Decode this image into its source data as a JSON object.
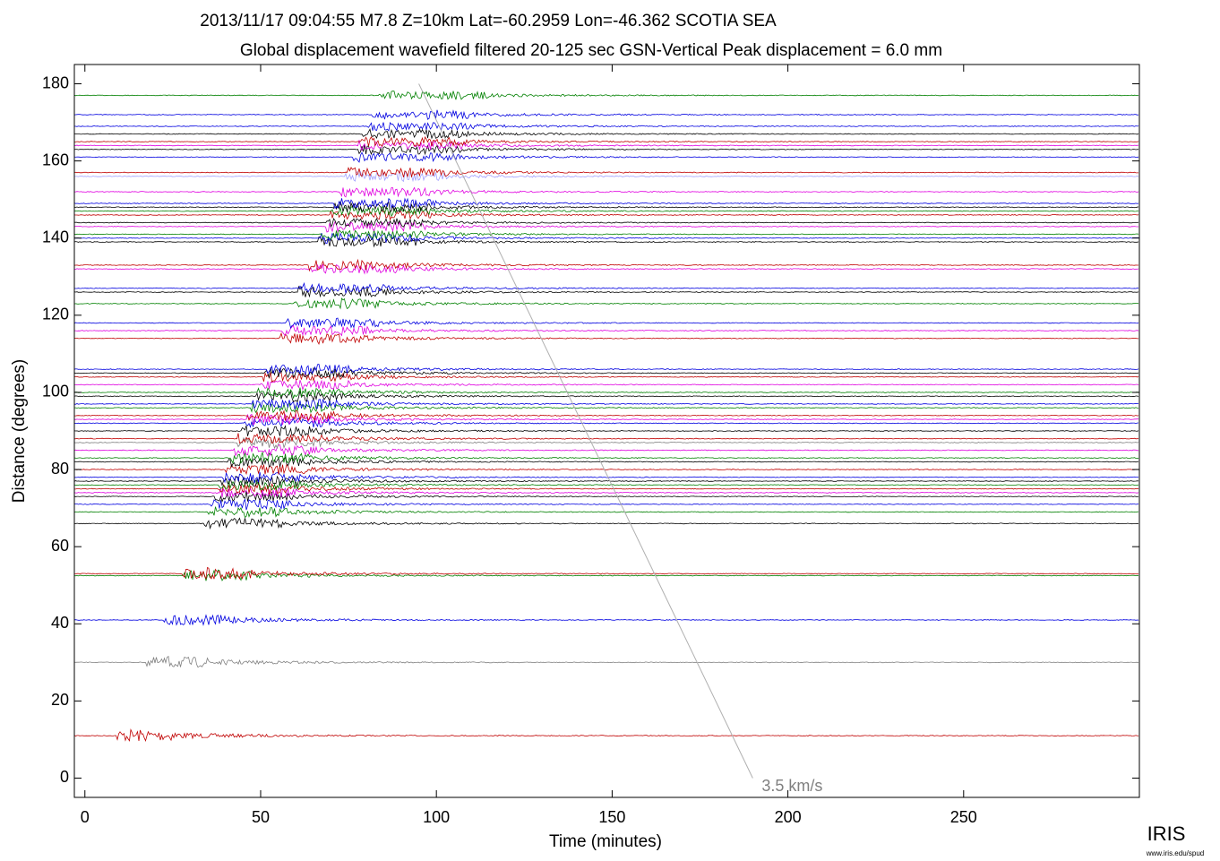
{
  "chart_data": {
    "type": "record-section",
    "title": "2013/11/17  09:04:55  M7.8  Z=10km  Lat=-60.2959 Lon=-46.362  SCOTIA SEA",
    "subtitle": "Global displacement wavefield     filtered 20-125 sec    GSN-Vertical    Peak displacement = 6.0 mm",
    "x_label": "Time (minutes)",
    "y_label": "Distance (degrees)",
    "xlim": [
      -3,
      300
    ],
    "ylim": [
      -5,
      185
    ],
    "xticks": [
      0,
      50,
      100,
      150,
      200,
      250
    ],
    "yticks": [
      0,
      20,
      40,
      60,
      80,
      100,
      120,
      140,
      160,
      180
    ],
    "reference_line": {
      "label": "3.5 km/s",
      "x": [
        95,
        190
      ],
      "y": [
        180,
        0
      ],
      "color": "#b0b0b0"
    },
    "traces": [
      {
        "distance": 11,
        "color": "#c00000"
      },
      {
        "distance": 30,
        "color": "#808080"
      },
      {
        "distance": 41,
        "color": "#0000e0"
      },
      {
        "distance": 52.5,
        "color": "#008000"
      },
      {
        "distance": 53,
        "color": "#c00000"
      },
      {
        "distance": 66,
        "color": "#000000"
      },
      {
        "distance": 69,
        "color": "#008000"
      },
      {
        "distance": 71,
        "color": "#0000e0"
      },
      {
        "distance": 73,
        "color": "#000000"
      },
      {
        "distance": 74,
        "color": "#e000e0"
      },
      {
        "distance": 75,
        "color": "#c00000"
      },
      {
        "distance": 76,
        "color": "#008000"
      },
      {
        "distance": 77,
        "color": "#000000"
      },
      {
        "distance": 78,
        "color": "#0000e0"
      },
      {
        "distance": 80,
        "color": "#c00000"
      },
      {
        "distance": 82,
        "color": "#000000"
      },
      {
        "distance": 83,
        "color": "#008000"
      },
      {
        "distance": 85,
        "color": "#e000e0"
      },
      {
        "distance": 87,
        "color": "#808080"
      },
      {
        "distance": 88,
        "color": "#c00000"
      },
      {
        "distance": 90,
        "color": "#000000"
      },
      {
        "distance": 92,
        "color": "#0000e0"
      },
      {
        "distance": 93,
        "color": "#e000e0"
      },
      {
        "distance": 94,
        "color": "#c00000"
      },
      {
        "distance": 96,
        "color": "#008000"
      },
      {
        "distance": 97,
        "color": "#0000e0"
      },
      {
        "distance": 99,
        "color": "#000000"
      },
      {
        "distance": 100,
        "color": "#008000"
      },
      {
        "distance": 102,
        "color": "#e000e0"
      },
      {
        "distance": 104,
        "color": "#c00000"
      },
      {
        "distance": 105,
        "color": "#000000"
      },
      {
        "distance": 106,
        "color": "#0000e0"
      },
      {
        "distance": 114,
        "color": "#c00000"
      },
      {
        "distance": 116,
        "color": "#e000e0"
      },
      {
        "distance": 118,
        "color": "#0000e0"
      },
      {
        "distance": 123,
        "color": "#008000"
      },
      {
        "distance": 126,
        "color": "#000000"
      },
      {
        "distance": 127,
        "color": "#0000e0"
      },
      {
        "distance": 132,
        "color": "#e000e0"
      },
      {
        "distance": 133,
        "color": "#c00000"
      },
      {
        "distance": 139,
        "color": "#000000"
      },
      {
        "distance": 140,
        "color": "#0000e0"
      },
      {
        "distance": 141,
        "color": "#008000"
      },
      {
        "distance": 143,
        "color": "#e000e0"
      },
      {
        "distance": 144,
        "color": "#000000"
      },
      {
        "distance": 146,
        "color": "#c00000"
      },
      {
        "distance": 147,
        "color": "#008000"
      },
      {
        "distance": 148,
        "color": "#000000"
      },
      {
        "distance": 149,
        "color": "#0000e0"
      },
      {
        "distance": 152,
        "color": "#e000e0"
      },
      {
        "distance": 156,
        "color": "#a0a0ff"
      },
      {
        "distance": 157,
        "color": "#c00000"
      },
      {
        "distance": 161,
        "color": "#0000e0"
      },
      {
        "distance": 163,
        "color": "#000000"
      },
      {
        "distance": 164,
        "color": "#e000e0"
      },
      {
        "distance": 165,
        "color": "#c00000"
      },
      {
        "distance": 167,
        "color": "#000000"
      },
      {
        "distance": 169,
        "color": "#0000e0"
      },
      {
        "distance": 172,
        "color": "#0000e0"
      },
      {
        "distance": 177,
        "color": "#008000"
      }
    ]
  },
  "logo": {
    "name": "IRIS",
    "url": "www.iris.edu/spud"
  }
}
